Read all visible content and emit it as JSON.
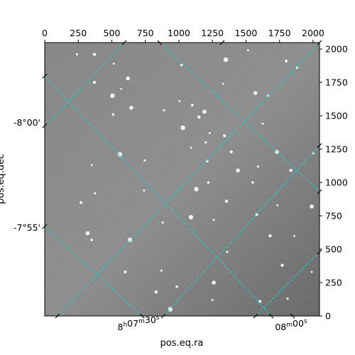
{
  "chart_data": {
    "type": "scatter",
    "title": "",
    "background": "astronomical sky image (grayscale, star field)",
    "colormap": "gray",
    "grid_color": "#1fd0d0",
    "grid": true,
    "pixel_axes": {
      "x_range": [
        0,
        2048
      ],
      "y_range": [
        0,
        2048
      ],
      "x_ticks": [
        0,
        250,
        500,
        750,
        1000,
        1250,
        1500,
        1750,
        2000
      ],
      "y_ticks": [
        0,
        250,
        500,
        750,
        1000,
        1250,
        1500,
        1750,
        2000
      ],
      "x_tick_labels": [
        "0",
        "250",
        "500",
        "750",
        "1000",
        "1250",
        "1500",
        "1750",
        "2000"
      ],
      "y_tick_labels": [
        "0",
        "250",
        "500",
        "750",
        "1000",
        "1250",
        "1500",
        "1750",
        "2000"
      ]
    },
    "world_axes": {
      "xlabel": "pos.eq.ra",
      "ylabel": "pos.eq.dec",
      "ra_tick_labels": [
        "8h07m30s",
        "08m00s"
      ],
      "dec_tick_labels": [
        "-8°00'",
        "-7°55'"
      ]
    },
    "stars": [
      {
        "x": 240,
        "y": 1960
      },
      {
        "x": 370,
        "y": 1960
      },
      {
        "x": 515,
        "y": 1890
      },
      {
        "x": 620,
        "y": 1780
      },
      {
        "x": 1020,
        "y": 1880
      },
      {
        "x": 1350,
        "y": 1920
      },
      {
        "x": 1515,
        "y": 1990
      },
      {
        "x": 1800,
        "y": 1910
      },
      {
        "x": 1880,
        "y": 1860
      },
      {
        "x": 370,
        "y": 1750
      },
      {
        "x": 1330,
        "y": 1740
      },
      {
        "x": 1570,
        "y": 1670
      },
      {
        "x": 1665,
        "y": 1650
      },
      {
        "x": 505,
        "y": 1650
      },
      {
        "x": 1005,
        "y": 1610
      },
      {
        "x": 1100,
        "y": 1580
      },
      {
        "x": 890,
        "y": 1540
      },
      {
        "x": 1150,
        "y": 1490
      },
      {
        "x": 1625,
        "y": 1440
      },
      {
        "x": 645,
        "y": 1560
      },
      {
        "x": 510,
        "y": 1510
      },
      {
        "x": 1030,
        "y": 1410
      },
      {
        "x": 1230,
        "y": 1370
      },
      {
        "x": 1340,
        "y": 1350
      },
      {
        "x": 1200,
        "y": 1300
      },
      {
        "x": 1390,
        "y": 1230
      },
      {
        "x": 1090,
        "y": 1260
      },
      {
        "x": 1730,
        "y": 1230
      },
      {
        "x": 2000,
        "y": 1220
      },
      {
        "x": 560,
        "y": 1210
      },
      {
        "x": 745,
        "y": 1165
      },
      {
        "x": 1210,
        "y": 1160
      },
      {
        "x": 1590,
        "y": 1120
      },
      {
        "x": 1835,
        "y": 1090
      },
      {
        "x": 350,
        "y": 1130
      },
      {
        "x": 1440,
        "y": 1090
      },
      {
        "x": 1220,
        "y": 1000
      },
      {
        "x": 1130,
        "y": 950
      },
      {
        "x": 740,
        "y": 940
      },
      {
        "x": 270,
        "y": 850
      },
      {
        "x": 375,
        "y": 920
      },
      {
        "x": 1355,
        "y": 860
      },
      {
        "x": 1735,
        "y": 830
      },
      {
        "x": 1990,
        "y": 820
      },
      {
        "x": 1550,
        "y": 1000
      },
      {
        "x": 1090,
        "y": 740
      },
      {
        "x": 1260,
        "y": 720
      },
      {
        "x": 1580,
        "y": 760
      },
      {
        "x": 880,
        "y": 700
      },
      {
        "x": 1680,
        "y": 600
      },
      {
        "x": 1860,
        "y": 600
      },
      {
        "x": 320,
        "y": 620
      },
      {
        "x": 350,
        "y": 570
      },
      {
        "x": 635,
        "y": 570
      },
      {
        "x": 1360,
        "y": 480
      },
      {
        "x": 600,
        "y": 330
      },
      {
        "x": 870,
        "y": 340
      },
      {
        "x": 1770,
        "y": 380
      },
      {
        "x": 1990,
        "y": 330
      },
      {
        "x": 1260,
        "y": 250
      },
      {
        "x": 985,
        "y": 220
      },
      {
        "x": 935,
        "y": 50
      },
      {
        "x": 1250,
        "y": 120
      },
      {
        "x": 1605,
        "y": 110
      },
      {
        "x": 1810,
        "y": 130
      },
      {
        "x": 830,
        "y": 180
      },
      {
        "x": 570,
        "y": 1700
      },
      {
        "x": 1190,
        "y": 1530
      }
    ]
  }
}
